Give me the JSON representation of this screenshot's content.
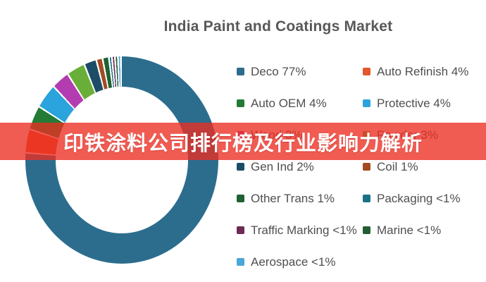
{
  "title": "India Paint and Coatings Market",
  "banner": {
    "text": "印铁涂料公司排行榜及行业影响力解析",
    "bg_color": "rgba(236,45,33,0.78)"
  },
  "chart_data": {
    "type": "pie",
    "variant": "donut",
    "title": "India Paint and Coatings Market",
    "legend_position": "right",
    "start_angle_deg": 0,
    "segments": [
      {
        "label": "Deco",
        "display": "Deco 77%",
        "pct": 77,
        "color": "#2C6D8E"
      },
      {
        "label": "Auto Refinish",
        "display": "Auto Refinish 4%",
        "pct": 4,
        "color": "#E2572B"
      },
      {
        "label": "Auto OEM",
        "display": "Auto OEM 4%",
        "pct": 4,
        "color": "#237B36"
      },
      {
        "label": "Protective",
        "display": "Protective 4%",
        "pct": 4,
        "color": "#2BA3DC"
      },
      {
        "label": "Wood",
        "display": "Wood 3%",
        "pct": 3,
        "color": "#B43CB1"
      },
      {
        "label": "Powder",
        "display": "Powder 3%",
        "pct": 3,
        "color": "#69AE38"
      },
      {
        "label": "Gen Ind",
        "display": "Gen Ind 2%",
        "pct": 2,
        "color": "#1D4D66"
      },
      {
        "label": "Coil",
        "display": "Coil 1%",
        "pct": 1,
        "color": "#A34B21"
      },
      {
        "label": "Other Trans",
        "display": "Other Trans 1%",
        "pct": 1,
        "color": "#1E6132"
      },
      {
        "label": "Packaging",
        "display": "Packaging <1%",
        "pct": 0.25,
        "color": "#1A7187"
      },
      {
        "label": "Traffic Marking",
        "display": "Traffic Marking <1%",
        "pct": 0.25,
        "color": "#6E2A55"
      },
      {
        "label": "Marine",
        "display": "Marine <1%",
        "pct": 0.25,
        "color": "#235D31"
      },
      {
        "label": "Aerospace",
        "display": "Aerospace <1%",
        "pct": 0.25,
        "color": "#4BA6D9"
      }
    ]
  }
}
